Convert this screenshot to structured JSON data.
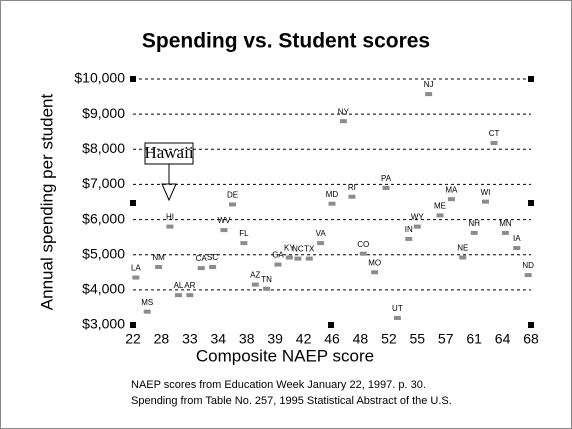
{
  "chart_data": {
    "type": "scatter",
    "title": "Spending vs. Student scores",
    "x_label": "Composite NAEP score",
    "y_label": "Annual spending per student",
    "notes": [
      "NAEP scores from Education Week January 22, 1997. p. 30.",
      "Spending from Table No. 257, 1995 Statistical Abstract of the U.S."
    ],
    "annotation": "Hawaii",
    "color": "#8c8c8c",
    "grid": true,
    "xlim": [
      0,
      14
    ],
    "xticks": [
      {
        "value": 0,
        "label": "22"
      },
      {
        "value": 1,
        "label": "28"
      },
      {
        "value": 2,
        "label": "33"
      },
      {
        "value": 3,
        "label": "34"
      },
      {
        "value": 4,
        "label": "38"
      },
      {
        "value": 5,
        "label": "39"
      },
      {
        "value": 6,
        "label": "42"
      },
      {
        "value": 7,
        "label": "46"
      },
      {
        "value": 8,
        "label": "48"
      },
      {
        "value": 9,
        "label": "52"
      },
      {
        "value": 10,
        "label": "55"
      },
      {
        "value": 11,
        "label": "57"
      },
      {
        "value": 12,
        "label": "61"
      },
      {
        "value": 13,
        "label": "64"
      },
      {
        "value": 14,
        "label": "68"
      }
    ],
    "ylim": [
      3000,
      10000
    ],
    "yticks": [
      {
        "value": 3000,
        "label": "$3,000"
      },
      {
        "value": 4000,
        "label": "$4,000"
      },
      {
        "value": 5000,
        "label": "$5,000"
      },
      {
        "value": 6000,
        "label": "$6,000"
      },
      {
        "value": 7000,
        "label": "$7,000"
      },
      {
        "value": 8000,
        "label": "$8,000"
      },
      {
        "value": 9000,
        "label": "$9,000"
      },
      {
        "value": 10000,
        "label": "$10,000"
      }
    ],
    "labels": [
      "LA",
      "MS",
      "NM",
      "HI",
      "AL",
      "AR",
      "CA",
      "SC",
      "WV",
      "DE",
      "FL",
      "AZ",
      "TN",
      "GA",
      "KY",
      "NC",
      "TX",
      "VA",
      "MD",
      "NY",
      "RI",
      "CO",
      "MO",
      "PA",
      "UT",
      "IN",
      "WY",
      "NJ",
      "ME",
      "MA",
      "NE",
      "NH",
      "WI",
      "CT",
      "MN",
      "IA",
      "ND"
    ],
    "x": [
      0.1,
      0.5,
      0.9,
      1.3,
      1.6,
      2.0,
      2.4,
      2.8,
      3.2,
      3.5,
      3.9,
      4.3,
      4.7,
      5.1,
      5.5,
      5.8,
      6.2,
      6.6,
      7.0,
      7.4,
      7.7,
      8.1,
      8.5,
      8.9,
      9.3,
      9.7,
      10.0,
      10.4,
      10.8,
      11.2,
      11.6,
      12.0,
      12.4,
      12.7,
      13.1,
      13.5,
      13.9
    ],
    "values": [
      4350,
      3380,
      4650,
      5800,
      3850,
      3850,
      4620,
      4650,
      5700,
      6430,
      5330,
      4150,
      4030,
      4720,
      4920,
      4890,
      4890,
      5330,
      6450,
      8800,
      6650,
      5030,
      4500,
      6900,
      3200,
      5450,
      5800,
      9570,
      6120,
      6580,
      4920,
      5620,
      6510,
      8180,
      5620,
      5190,
      4420
    ]
  }
}
